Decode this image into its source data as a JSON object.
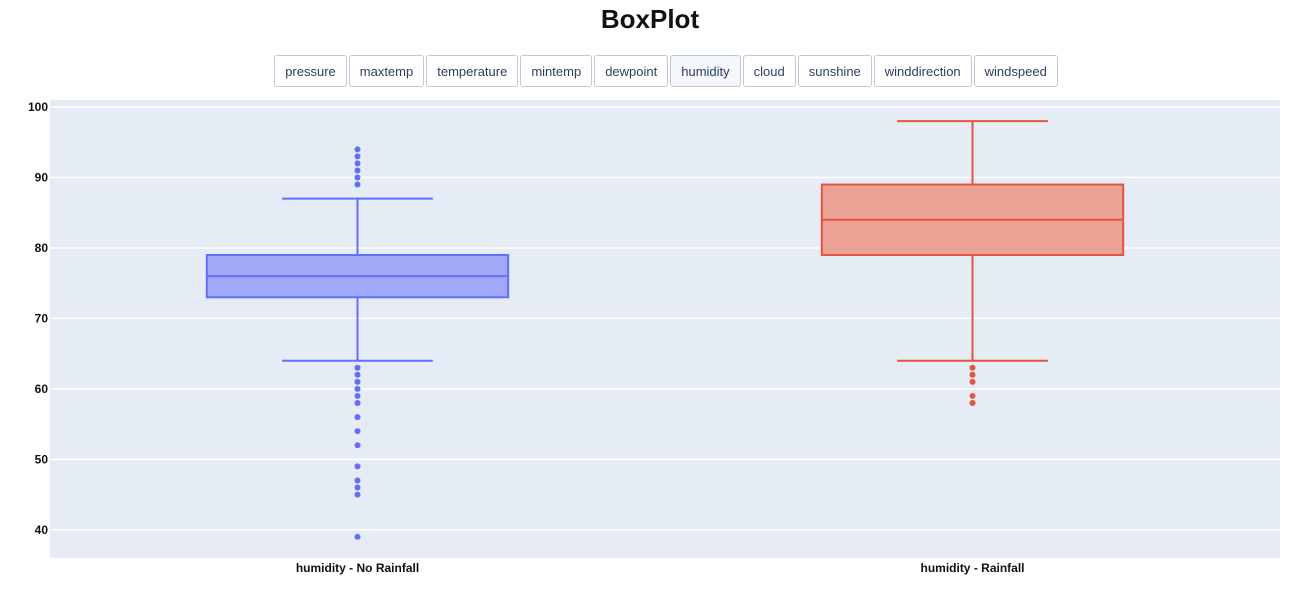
{
  "title": "BoxPlot",
  "buttons": [
    "pressure",
    "maxtemp",
    "temperature",
    "mintemp",
    "dewpoint",
    "humidity",
    "cloud",
    "sunshine",
    "winddirection",
    "windspeed"
  ],
  "active_button": "humidity",
  "chart_data": {
    "type": "box",
    "ylim": [
      36,
      101
    ],
    "yticks": [
      40,
      50,
      60,
      70,
      80,
      90,
      100
    ],
    "grid": true,
    "plot_background": "#e5ecf6",
    "categories": [
      "humidity - No Rainfall",
      "humidity - Rainfall"
    ],
    "series": [
      {
        "category": "humidity - No Rainfall",
        "color": "#636efa",
        "fill": "#a1a8f7",
        "q1": 73,
        "median": 76,
        "q3": 79,
        "lower_fence": 64,
        "upper_fence": 87,
        "outliers": [
          39,
          45,
          46,
          47,
          49,
          52,
          54,
          56,
          58,
          59,
          60,
          61,
          62,
          63,
          89,
          90,
          91,
          92,
          93,
          94
        ]
      },
      {
        "category": "humidity - Rainfall",
        "color": "#e3553d",
        "fill": "#eaa295",
        "q1": 79,
        "median": 84,
        "q3": 89,
        "lower_fence": 64,
        "upper_fence": 98,
        "outliers": [
          58,
          59,
          61,
          62,
          63
        ]
      }
    ]
  }
}
